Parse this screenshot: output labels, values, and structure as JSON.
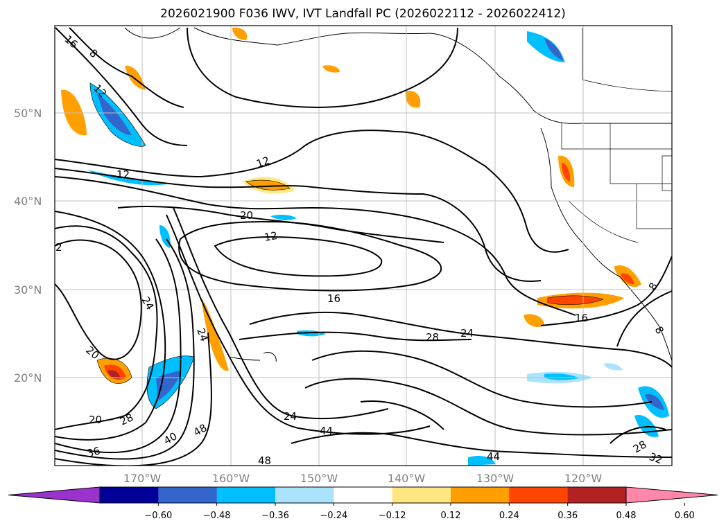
{
  "title": "2026021900 F036 IWV, IVT Landfall PC (2026022112 - 2026022412)",
  "lat_labels": [
    "50°N",
    "40°N",
    "30°N",
    "20°N"
  ],
  "lon_labels": [
    "170°W",
    "160°W",
    "150°W",
    "140°W",
    "130°W",
    "120°W"
  ],
  "contour_labels": [
    "16",
    "8",
    "12",
    "12",
    "12",
    "20",
    "12",
    "2",
    "24",
    "16",
    "24",
    "28",
    "24",
    "20",
    "20",
    "28",
    "40",
    "48",
    "36",
    "24",
    "44",
    "48",
    "44",
    "16",
    "8",
    "8",
    "28",
    "32"
  ],
  "colorbar": {
    "ticks": [
      "−0.60",
      "−0.48",
      "−0.36",
      "−0.24",
      "−0.12",
      "0.12",
      "0.24",
      "0.36",
      "0.48",
      "0.60"
    ],
    "colors": [
      "#9933cc",
      "#000099",
      "#3366cc",
      "#00bfff",
      "#aae3fb",
      "#ffffff",
      "#ffe680",
      "#ffa000",
      "#ff4500",
      "#b22222",
      "#ff88aa"
    ]
  }
}
